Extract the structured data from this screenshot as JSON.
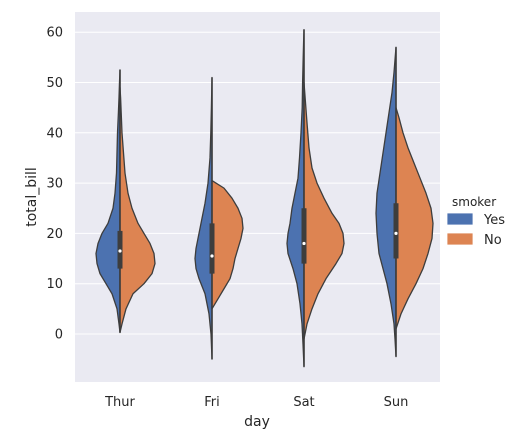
{
  "chart_data": {
    "type": "violin",
    "split": true,
    "xlabel": "day",
    "ylabel": "total_bill",
    "categories": [
      "Thur",
      "Fri",
      "Sat",
      "Sun"
    ],
    "ylim": [
      -10,
      63
    ],
    "yticks": [
      0,
      10,
      20,
      30,
      40,
      50,
      60
    ],
    "grid": true,
    "legend": {
      "title": "smoker",
      "placement": "right",
      "entries": [
        {
          "label": "Yes",
          "color": "#4C72B0"
        },
        {
          "label": "No",
          "color": "#DD8452"
        }
      ]
    },
    "series": [
      {
        "name": "Yes",
        "side": "left",
        "color": "#4C72B0",
        "violins": [
          {
            "category": "Thur",
            "range": [
              0.3,
              52.5
            ],
            "quartiles": [
              13,
              16.5,
              20.5
            ],
            "profile": [
              [
                0.3,
                0
              ],
              [
                2,
                1
              ],
              [
                5,
                3
              ],
              [
                8,
                8
              ],
              [
                10,
                14
              ],
              [
                12,
                20
              ],
              [
                14,
                23
              ],
              [
                16,
                24
              ],
              [
                18,
                22
              ],
              [
                20,
                18
              ],
              [
                22,
                12
              ],
              [
                25,
                7
              ],
              [
                28,
                5
              ],
              [
                32,
                3.5
              ],
              [
                36,
                3
              ],
              [
                40,
                2.5
              ],
              [
                44,
                1.6
              ],
              [
                47,
                1
              ],
              [
                50,
                0.5
              ],
              [
                52.5,
                0
              ]
            ]
          },
          {
            "category": "Fri",
            "range": [
              -5,
              51
            ],
            "quartiles": [
              12,
              15.5,
              22
            ],
            "profile": [
              [
                -5,
                0
              ],
              [
                0,
                1
              ],
              [
                4,
                3
              ],
              [
                8,
                7
              ],
              [
                11,
                13
              ],
              [
                13,
                16
              ],
              [
                15,
                17
              ],
              [
                17,
                16
              ],
              [
                19,
                14
              ],
              [
                21,
                12
              ],
              [
                23,
                10
              ],
              [
                26,
                7
              ],
              [
                30,
                4
              ],
              [
                35,
                2
              ],
              [
                40,
                1.2
              ],
              [
                45,
                0.6
              ],
              [
                49,
                0.2
              ],
              [
                51,
                0
              ]
            ]
          },
          {
            "category": "Sat",
            "range": [
              -6.5,
              60.5
            ],
            "quartiles": [
              14,
              18,
              25
            ],
            "profile": [
              [
                -6.5,
                0
              ],
              [
                -2,
                1
              ],
              [
                2,
                2
              ],
              [
                6,
                4
              ],
              [
                10,
                7
              ],
              [
                13,
                11
              ],
              [
                16,
                16
              ],
              [
                18,
                17
              ],
              [
                20,
                16
              ],
              [
                22,
                14
              ],
              [
                25,
                12
              ],
              [
                28,
                9
              ],
              [
                31,
                6
              ],
              [
                35,
                4.5
              ],
              [
                40,
                3
              ],
              [
                45,
                1.8
              ],
              [
                50,
                1.4
              ],
              [
                55,
                0.8
              ],
              [
                58,
                0.4
              ],
              [
                60.5,
                0
              ]
            ]
          },
          {
            "category": "Sun",
            "range": [
              -4.5,
              57
            ],
            "quartiles": [
              15,
              20,
              26
            ],
            "profile": [
              [
                -4.5,
                0
              ],
              [
                -1,
                1
              ],
              [
                2,
                2
              ],
              [
                6,
                5
              ],
              [
                10,
                9
              ],
              [
                13,
                13
              ],
              [
                16,
                17
              ],
              [
                20,
                19
              ],
              [
                24,
                20
              ],
              [
                28,
                19
              ],
              [
                32,
                16
              ],
              [
                36,
                13
              ],
              [
                40,
                10
              ],
              [
                44,
                7
              ],
              [
                48,
                4
              ],
              [
                52,
                2
              ],
              [
                55,
                0.8
              ],
              [
                57,
                0
              ]
            ]
          }
        ]
      },
      {
        "name": "No",
        "side": "right",
        "color": "#DD8452",
        "violins": [
          {
            "category": "Thur",
            "range": [
              0.3,
              49
            ],
            "quartiles": [
              13,
              16.5,
              20.5
            ],
            "profile": [
              [
                0.3,
                0
              ],
              [
                2,
                2
              ],
              [
                5,
                6
              ],
              [
                8,
                13
              ],
              [
                10,
                24
              ],
              [
                12,
                32
              ],
              [
                14,
                35
              ],
              [
                16,
                34
              ],
              [
                18,
                30
              ],
              [
                20,
                24
              ],
              [
                22,
                18
              ],
              [
                25,
                12
              ],
              [
                28,
                8
              ],
              [
                32,
                5
              ],
              [
                36,
                3.5
              ],
              [
                40,
                2
              ],
              [
                44,
                1.2
              ],
              [
                47,
                0.6
              ],
              [
                49,
                0
              ]
            ]
          },
          {
            "category": "Fri",
            "range": [
              5,
              30.5
            ],
            "quartiles": [
              12,
              15.5,
              22
            ],
            "profile": [
              [
                5,
                0
              ],
              [
                7,
                6
              ],
              [
                9,
                12
              ],
              [
                11,
                18
              ],
              [
                13,
                21
              ],
              [
                15,
                23
              ],
              [
                17,
                26
              ],
              [
                19,
                29
              ],
              [
                21,
                31
              ],
              [
                23,
                30
              ],
              [
                25,
                26
              ],
              [
                27,
                20
              ],
              [
                29,
                12
              ],
              [
                30.5,
                0
              ]
            ]
          },
          {
            "category": "Sat",
            "range": [
              -1,
              50
            ],
            "quartiles": [
              14,
              18,
              25
            ],
            "profile": [
              [
                -1,
                0
              ],
              [
                2,
                3
              ],
              [
                5,
                8
              ],
              [
                8,
                14
              ],
              [
                11,
                22
              ],
              [
                14,
                32
              ],
              [
                16,
                38
              ],
              [
                18,
                40
              ],
              [
                20,
                39
              ],
              [
                22,
                35
              ],
              [
                24,
                28
              ],
              [
                27,
                20
              ],
              [
                30,
                13
              ],
              [
                33,
                8
              ],
              [
                37,
                5
              ],
              [
                42,
                3
              ],
              [
                46,
                1.5
              ],
              [
                50,
                0
              ]
            ]
          },
          {
            "category": "Sun",
            "range": [
              1,
              45
            ],
            "quartiles": [
              15,
              20,
              26
            ],
            "profile": [
              [
                1,
                0
              ],
              [
                4,
                5
              ],
              [
                7,
                12
              ],
              [
                10,
                20
              ],
              [
                13,
                27
              ],
              [
                16,
                32
              ],
              [
                19,
                36
              ],
              [
                22,
                37
              ],
              [
                25,
                35
              ],
              [
                28,
                30
              ],
              [
                31,
                24
              ],
              [
                34,
                18
              ],
              [
                37,
                12
              ],
              [
                40,
                7
              ],
              [
                43,
                3
              ],
              [
                45,
                0
              ]
            ]
          }
        ]
      }
    ]
  }
}
